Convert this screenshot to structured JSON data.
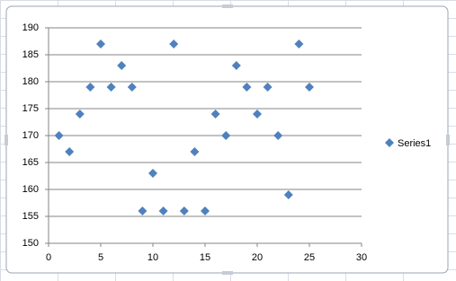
{
  "chart_data": {
    "type": "scatter",
    "x": [
      1,
      2,
      3,
      4,
      5,
      6,
      7,
      8,
      9,
      10,
      11,
      12,
      13,
      14,
      15,
      16,
      17,
      18,
      19,
      20,
      21,
      22,
      23,
      24,
      25
    ],
    "series": [
      {
        "name": "Series1",
        "color": "#4f81bd",
        "values": [
          170,
          167,
          174,
          179,
          187,
          179,
          183,
          179,
          156,
          163,
          156,
          187,
          156,
          167,
          156,
          174,
          170,
          183,
          179,
          174,
          179,
          170,
          159,
          187,
          179
        ]
      }
    ],
    "xlim": [
      0,
      30
    ],
    "xticks": [
      0,
      5,
      10,
      15,
      20,
      25,
      30
    ],
    "ylim": [
      150,
      190
    ],
    "yticks": [
      150,
      155,
      160,
      165,
      170,
      175,
      180,
      185,
      190
    ],
    "grid": true,
    "legend": "right"
  }
}
